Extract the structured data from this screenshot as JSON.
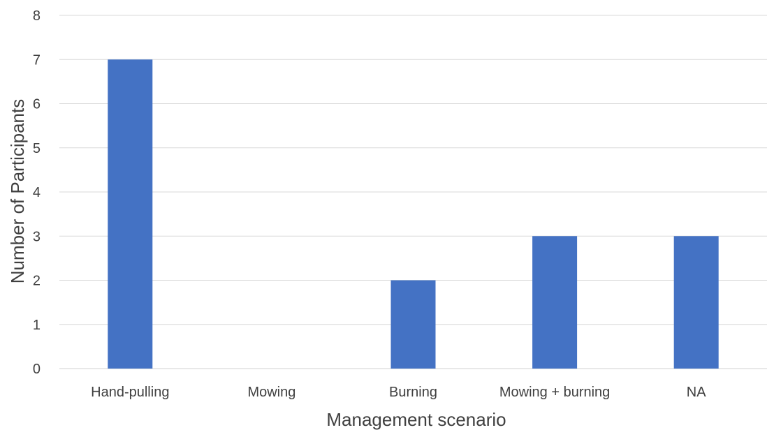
{
  "chart_data": {
    "type": "bar",
    "categories": [
      "Hand-pulling",
      "Mowing",
      "Burning",
      "Mowing + burning",
      "NA"
    ],
    "values": [
      7,
      0,
      2,
      3,
      3
    ],
    "title": "",
    "xlabel": "Management scenario",
    "ylabel": "Number of Participants",
    "ylim": [
      0,
      8
    ],
    "yticks": [
      0,
      1,
      2,
      3,
      4,
      5,
      6,
      7,
      8
    ],
    "grid": true,
    "legend": "none",
    "bar_color": "#4472c4"
  }
}
